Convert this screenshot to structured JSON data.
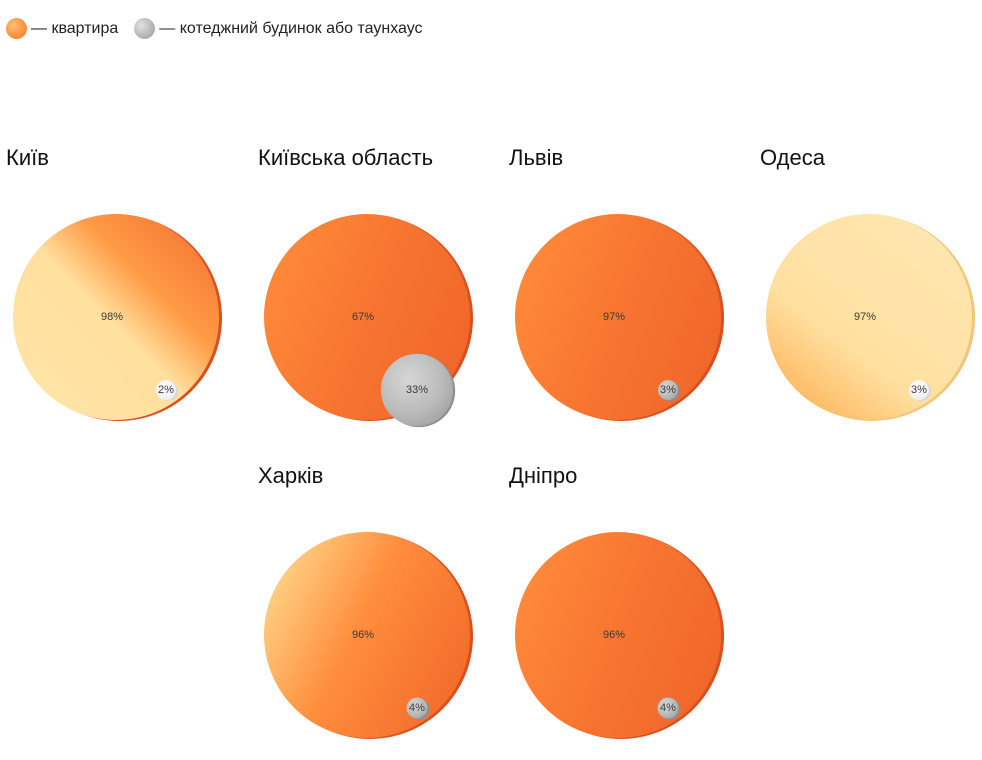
{
  "legend": {
    "items": [
      {
        "label": "— квартира",
        "color": "#f8873a"
      },
      {
        "label": "— котеджний будинок або таунхаус",
        "color": "#b5b5b5"
      }
    ]
  },
  "colors": {
    "apartment_dark": "#f26a2a",
    "apartment_mid": "#ff8a3c",
    "apartment_light": "#ffe3a6",
    "apartment_edge": "#d9501f",
    "house": "#b8b8b8",
    "house_edge": "#9a9a9a"
  },
  "chart_data": [
    {
      "type": "pie",
      "title": "Київ",
      "slices": [
        {
          "label": "квартира",
          "value": 98,
          "text": "98%"
        },
        {
          "label": "котеджний будинок або таунхаус",
          "value": 2,
          "text": "2%"
        }
      ],
      "style": "light-diagonal"
    },
    {
      "type": "pie",
      "title": "Київська область",
      "slices": [
        {
          "label": "квартира",
          "value": 67,
          "text": "67%"
        },
        {
          "label": "котеджний будинок або таунхаус",
          "value": 33,
          "text": "33%"
        }
      ],
      "style": "dark"
    },
    {
      "type": "pie",
      "title": "Львів",
      "slices": [
        {
          "label": "квартира",
          "value": 97,
          "text": "97%"
        },
        {
          "label": "котеджний будинок або таунхаус",
          "value": 3,
          "text": "3%"
        }
      ],
      "style": "dark"
    },
    {
      "type": "pie",
      "title": "Одеса",
      "slices": [
        {
          "label": "квартира",
          "value": 97,
          "text": "97%"
        },
        {
          "label": "котеджний будинок або таунхаус",
          "value": 3,
          "text": "3%"
        }
      ],
      "style": "light"
    },
    {
      "type": "pie",
      "title": "Харків",
      "slices": [
        {
          "label": "квартира",
          "value": 96,
          "text": "96%"
        },
        {
          "label": "котеджний будинок або таунхаус",
          "value": 4,
          "text": "4%"
        }
      ],
      "style": "mixed"
    },
    {
      "type": "pie",
      "title": "Дніпро",
      "slices": [
        {
          "label": "квартира",
          "value": 96,
          "text": "96%"
        },
        {
          "label": "котеджний будинок або таунхаус",
          "value": 4,
          "text": "4%"
        }
      ],
      "style": "dark"
    }
  ]
}
